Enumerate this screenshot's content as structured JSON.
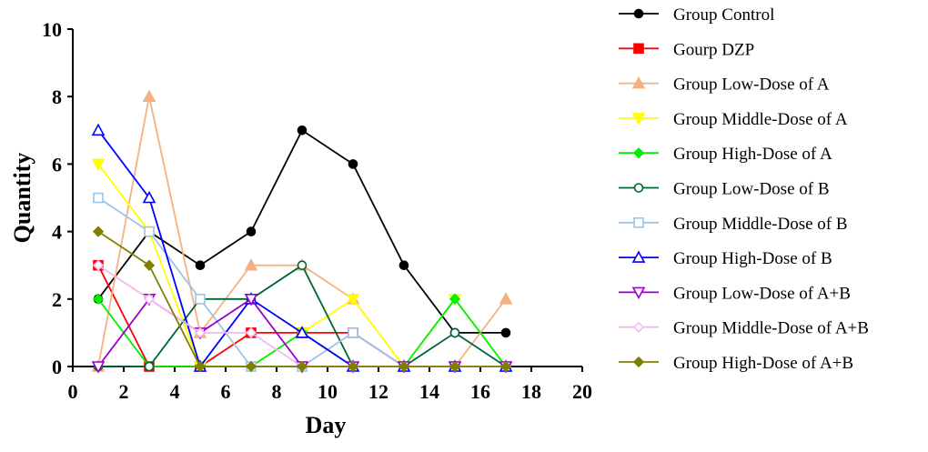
{
  "chart_data": {
    "type": "line",
    "title": "",
    "xlabel": "Day",
    "ylabel": "Quantity",
    "xlim": [
      0,
      20
    ],
    "ylim": [
      0,
      10
    ],
    "xticks": [
      0,
      2,
      4,
      6,
      8,
      10,
      12,
      14,
      16,
      18,
      20
    ],
    "yticks": [
      0,
      2,
      4,
      6,
      8,
      10
    ],
    "grid": false,
    "legend_position": "right",
    "series": [
      {
        "name": "Group Control",
        "color": "#000000",
        "marker": "circle",
        "points": [
          [
            1,
            2
          ],
          [
            3,
            4
          ],
          [
            5,
            3
          ],
          [
            7,
            4
          ],
          [
            9,
            7
          ],
          [
            11,
            6
          ],
          [
            13,
            3
          ],
          [
            15,
            1
          ],
          [
            17,
            1
          ]
        ]
      },
      {
        "name": "Gourp DZP",
        "color": "#ff0000",
        "marker": "square",
        "points": [
          [
            1,
            3
          ],
          [
            3,
            0
          ],
          [
            5,
            0
          ],
          [
            7,
            1
          ],
          [
            9,
            1
          ],
          [
            11,
            1
          ],
          [
            13,
            0
          ],
          [
            15,
            0
          ],
          [
            17,
            0
          ]
        ]
      },
      {
        "name": "Group Low-Dose of A",
        "color": "#f4b183",
        "marker": "triangle-up",
        "points": [
          [
            1,
            0
          ],
          [
            3,
            8
          ],
          [
            5,
            1
          ],
          [
            7,
            3
          ],
          [
            9,
            3
          ],
          [
            11,
            2
          ],
          [
            13,
            0
          ],
          [
            15,
            0
          ],
          [
            17,
            2
          ]
        ]
      },
      {
        "name": "Group Middle-Dose of A",
        "color": "#ffff00",
        "marker": "triangle-down",
        "points": [
          [
            1,
            6
          ],
          [
            3,
            4
          ],
          [
            5,
            0
          ],
          [
            7,
            0
          ],
          [
            9,
            1
          ],
          [
            11,
            2
          ],
          [
            13,
            0
          ],
          [
            15,
            2
          ],
          [
            17,
            0
          ]
        ]
      },
      {
        "name": "Group High-Dose of A",
        "color": "#00ee00",
        "marker": "diamond",
        "points": [
          [
            1,
            2
          ],
          [
            3,
            0
          ],
          [
            5,
            0
          ],
          [
            7,
            0
          ],
          [
            9,
            1
          ],
          [
            11,
            0
          ],
          [
            13,
            0
          ],
          [
            15,
            2
          ],
          [
            17,
            0
          ]
        ]
      },
      {
        "name": "Group Low-Dose of B",
        "color": "#006633",
        "marker": "circle-open",
        "points": [
          [
            1,
            0
          ],
          [
            3,
            0
          ],
          [
            5,
            2
          ],
          [
            7,
            2
          ],
          [
            9,
            3
          ],
          [
            11,
            0
          ],
          [
            13,
            0
          ],
          [
            15,
            1
          ],
          [
            17,
            0
          ]
        ]
      },
      {
        "name": "Group Middle-Dose of B",
        "color": "#9dc3e6",
        "marker": "square-open",
        "points": [
          [
            1,
            5
          ],
          [
            3,
            4
          ],
          [
            5,
            2
          ],
          [
            7,
            0
          ],
          [
            9,
            0
          ],
          [
            11,
            1
          ],
          [
            13,
            0
          ],
          [
            15,
            0
          ],
          [
            17,
            0
          ]
        ]
      },
      {
        "name": "Group High-Dose of B",
        "color": "#0000ff",
        "marker": "triangle-up-open",
        "points": [
          [
            1,
            7
          ],
          [
            3,
            5
          ],
          [
            5,
            0
          ],
          [
            7,
            2
          ],
          [
            9,
            1
          ],
          [
            11,
            0
          ],
          [
            13,
            0
          ],
          [
            15,
            0
          ],
          [
            17,
            0
          ]
        ]
      },
      {
        "name": "Group Low-Dose of A+B",
        "color": "#9900cc",
        "marker": "triangle-down-open",
        "points": [
          [
            1,
            0
          ],
          [
            3,
            2
          ],
          [
            5,
            1
          ],
          [
            7,
            2
          ],
          [
            9,
            0
          ],
          [
            11,
            0
          ],
          [
            13,
            0
          ],
          [
            15,
            0
          ],
          [
            17,
            0
          ]
        ]
      },
      {
        "name": "Group Middle-Dose of A+B",
        "color": "#f4b8f0",
        "marker": "diamond-open",
        "points": [
          [
            1,
            3
          ],
          [
            3,
            2
          ],
          [
            5,
            1
          ],
          [
            7,
            1
          ],
          [
            9,
            0
          ],
          [
            11,
            0
          ],
          [
            13,
            0
          ],
          [
            15,
            0
          ],
          [
            17,
            0
          ]
        ]
      },
      {
        "name": "Group High-Dose of A+B",
        "color": "#808000",
        "marker": "diamond",
        "points": [
          [
            1,
            4
          ],
          [
            3,
            3
          ],
          [
            5,
            0
          ],
          [
            7,
            0
          ],
          [
            9,
            0
          ],
          [
            11,
            0
          ],
          [
            13,
            0
          ],
          [
            15,
            0
          ],
          [
            17,
            0
          ]
        ]
      }
    ]
  }
}
